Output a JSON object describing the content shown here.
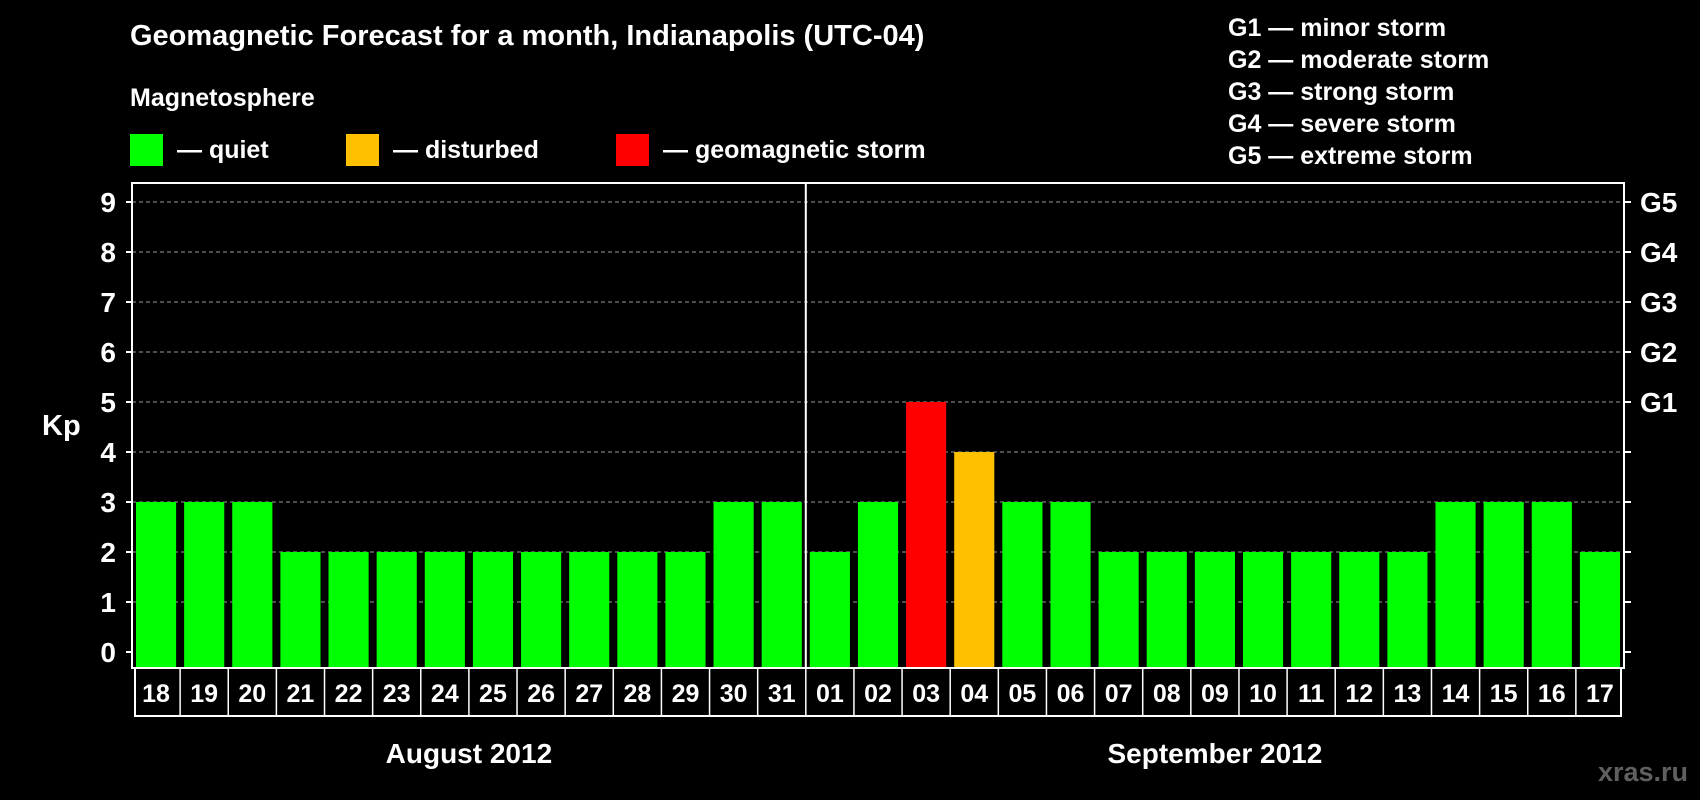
{
  "title": "Geomagnetic Forecast for a month, Indianapolis (UTC-04)",
  "subtitle": "Magnetosphere",
  "legend": [
    {
      "label": "— quiet",
      "color": "#00ff00"
    },
    {
      "label": "— disturbed",
      "color": "#ffc000"
    },
    {
      "label": "— geomagnetic storm",
      "color": "#ff0000"
    }
  ],
  "storm_levels": [
    "G1 — minor storm",
    "G2 — moderate storm",
    "G3 — strong storm",
    "G4 — severe storm",
    "G5 — extreme storm"
  ],
  "watermark": "xras.ru",
  "colors": {
    "quiet": "#00ff00",
    "disturbed": "#ffc000",
    "storm": "#ff0000",
    "grid": "#9a9a9a",
    "axis": "#ffffff"
  },
  "chart_data": {
    "type": "bar",
    "ylabel": "Kp",
    "ylim": [
      0,
      9
    ],
    "yticks": [
      0,
      1,
      2,
      3,
      4,
      5,
      6,
      7,
      8,
      9
    ],
    "right_axis_labels": [
      {
        "kp": 5,
        "label": "G1"
      },
      {
        "kp": 6,
        "label": "G2"
      },
      {
        "kp": 7,
        "label": "G3"
      },
      {
        "kp": 8,
        "label": "G4"
      },
      {
        "kp": 9,
        "label": "G5"
      }
    ],
    "grid": true,
    "month_divider_after_index": 13,
    "months": [
      {
        "label": "August 2012",
        "start": 0,
        "end": 13
      },
      {
        "label": "September 2012",
        "start": 14,
        "end": 30
      }
    ],
    "categories": [
      "18",
      "19",
      "20",
      "21",
      "22",
      "23",
      "24",
      "25",
      "26",
      "27",
      "28",
      "29",
      "30",
      "31",
      "01",
      "02",
      "03",
      "04",
      "05",
      "06",
      "07",
      "08",
      "09",
      "10",
      "11",
      "12",
      "13",
      "14",
      "15",
      "16",
      "17"
    ],
    "values": [
      3,
      3,
      3,
      2,
      2,
      2,
      2,
      2,
      2,
      2,
      2,
      2,
      3,
      3,
      2,
      3,
      5,
      4,
      3,
      3,
      2,
      2,
      2,
      2,
      2,
      2,
      2,
      3,
      3,
      3,
      2
    ],
    "status": [
      "quiet",
      "quiet",
      "quiet",
      "quiet",
      "quiet",
      "quiet",
      "quiet",
      "quiet",
      "quiet",
      "quiet",
      "quiet",
      "quiet",
      "quiet",
      "quiet",
      "quiet",
      "quiet",
      "storm",
      "disturbed",
      "quiet",
      "quiet",
      "quiet",
      "quiet",
      "quiet",
      "quiet",
      "quiet",
      "quiet",
      "quiet",
      "quiet",
      "quiet",
      "quiet",
      "quiet"
    ]
  }
}
